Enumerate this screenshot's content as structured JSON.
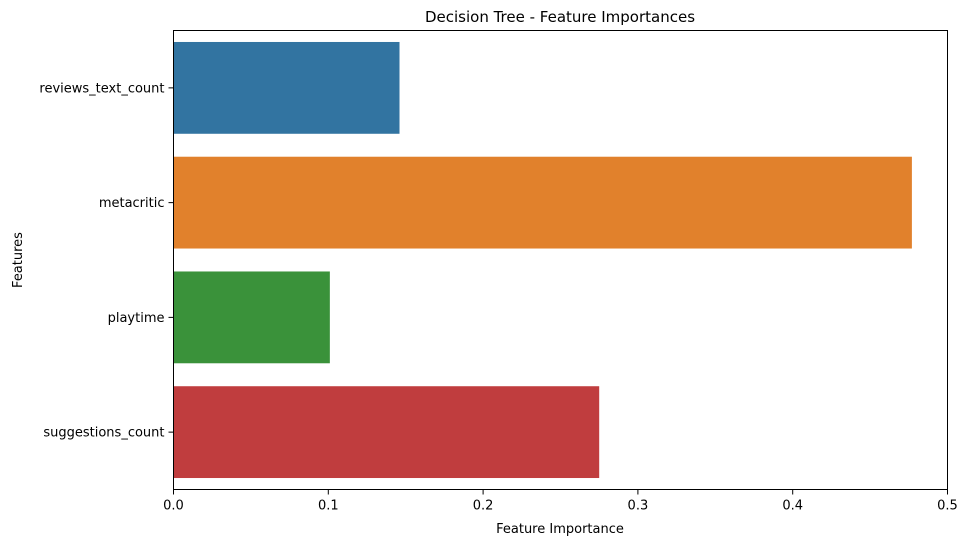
{
  "chart_data": {
    "type": "bar",
    "orientation": "horizontal",
    "title": "Decision Tree - Feature Importances",
    "xlabel": "Feature Importance",
    "ylabel": "Features",
    "xlim": [
      0,
      0.5
    ],
    "xticks": [
      0.0,
      0.1,
      0.2,
      0.3,
      0.4,
      0.5
    ],
    "xtick_labels": [
      "0.0",
      "0.1",
      "0.2",
      "0.3",
      "0.4",
      "0.5"
    ],
    "categories": [
      "reviews_text_count",
      "metacritic",
      "playtime",
      "suggestions_count"
    ],
    "values": [
      0.146,
      0.477,
      0.101,
      0.275
    ],
    "colors": [
      "#3274a1",
      "#e1812c",
      "#3a923a",
      "#c03d3e"
    ],
    "grid": false,
    "legend": "none"
  }
}
